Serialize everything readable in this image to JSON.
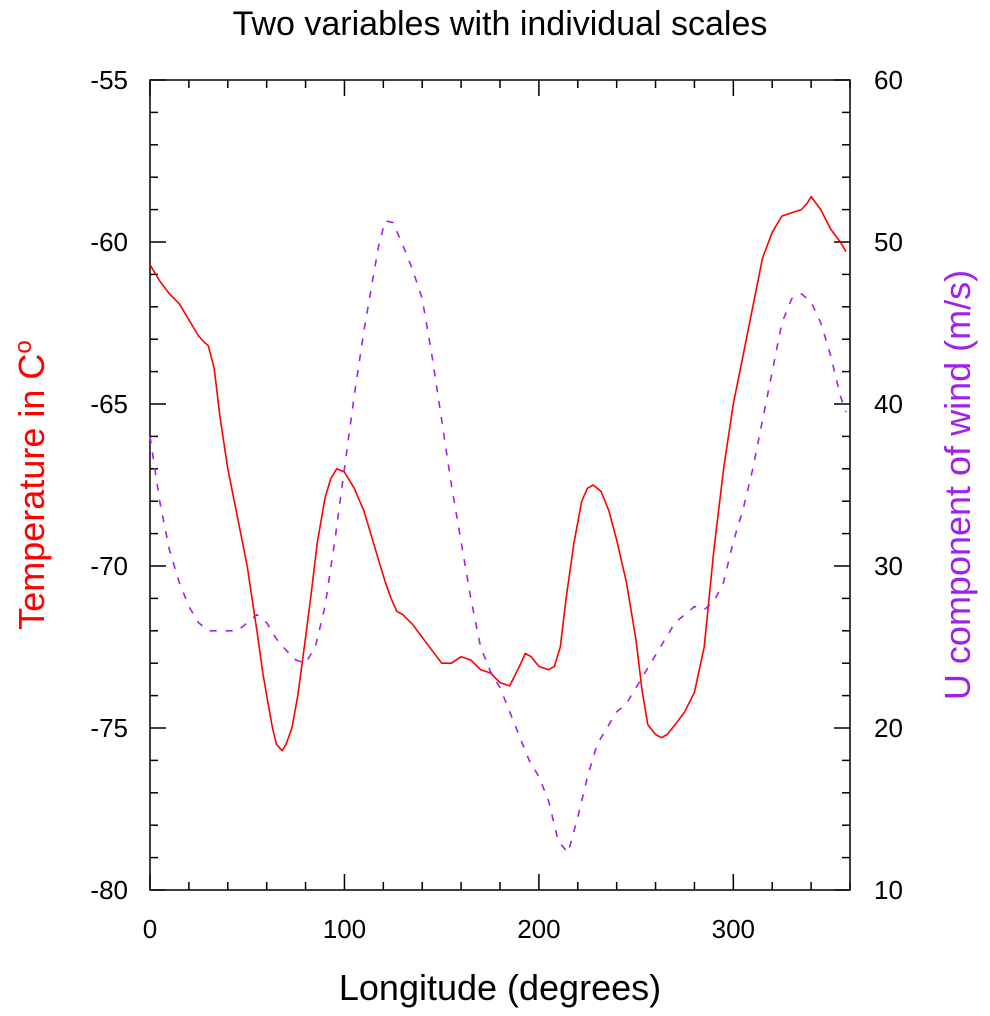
{
  "chart_data": {
    "type": "line",
    "title": "Two variables with individual scales",
    "xlabel": "Longitude (degrees)",
    "ylabel_left": "Temperature in C",
    "ylabel_left_superscript": "o",
    "ylabel_right": "U component of wind (m/s)",
    "xlim": [
      0,
      360
    ],
    "ylim_left": [
      -80,
      -55
    ],
    "ylim_right": [
      10,
      60
    ],
    "x_ticks": [
      0,
      100,
      200,
      300
    ],
    "x_tick_labels": [
      "0",
      "100",
      "200",
      "300"
    ],
    "y_left_ticks": [
      -80,
      -75,
      -70,
      -65,
      -60,
      -55
    ],
    "y_left_tick_labels": [
      "-80",
      "-75",
      "-70",
      "-65",
      "-60",
      "-55"
    ],
    "y_right_ticks": [
      10,
      20,
      30,
      40,
      50,
      60
    ],
    "y_right_tick_labels": [
      "10",
      "20",
      "30",
      "40",
      "50",
      "60"
    ],
    "grid": false,
    "colors": {
      "temperature": "#ff0000",
      "wind": "#a020f0",
      "axes": "#000000"
    },
    "series": [
      {
        "axis": "left",
        "style": "solid",
        "x": [
          0,
          5,
          10,
          15,
          20,
          25,
          28,
          30,
          33,
          36,
          40,
          45,
          50,
          55,
          58,
          60,
          63,
          65,
          68,
          70,
          73,
          76,
          80,
          83,
          86,
          90,
          93,
          96,
          100,
          105,
          110,
          115,
          118,
          121,
          124,
          127,
          130,
          135,
          140,
          145,
          150,
          155,
          160,
          165,
          170,
          175,
          180,
          185,
          190,
          193,
          196,
          200,
          205,
          208,
          211,
          214,
          218,
          222,
          225,
          228,
          232,
          236,
          240,
          245,
          250,
          253,
          256,
          260,
          263,
          266,
          270,
          275,
          280,
          285,
          290,
          295,
          300,
          305,
          310,
          315,
          320,
          325,
          330,
          335,
          338,
          340,
          345,
          350,
          355,
          358
        ],
        "y": [
          -60.7,
          -61.2,
          -61.6,
          -61.9,
          -62.4,
          -62.9,
          -63.1,
          -63.2,
          -63.9,
          -65.4,
          -67.0,
          -68.5,
          -70.0,
          -72.0,
          -73.3,
          -74.0,
          -75.0,
          -75.5,
          -75.7,
          -75.5,
          -75.0,
          -74.0,
          -72.2,
          -70.8,
          -69.3,
          -67.9,
          -67.3,
          -67.0,
          -67.1,
          -67.6,
          -68.3,
          -69.3,
          -69.9,
          -70.5,
          -71.0,
          -71.4,
          -71.5,
          -71.8,
          -72.2,
          -72.6,
          -73.0,
          -73.0,
          -72.8,
          -72.9,
          -73.2,
          -73.3,
          -73.6,
          -73.7,
          -73.1,
          -72.7,
          -72.8,
          -73.1,
          -73.2,
          -73.1,
          -72.5,
          -71.0,
          -69.3,
          -68.0,
          -67.6,
          -67.5,
          -67.7,
          -68.3,
          -69.2,
          -70.5,
          -72.3,
          -73.8,
          -74.9,
          -75.2,
          -75.3,
          -75.2,
          -74.9,
          -74.5,
          -73.9,
          -72.5,
          -69.5,
          -67.0,
          -65.0,
          -63.5,
          -62.0,
          -60.5,
          -59.7,
          -59.2,
          -59.1,
          -59.0,
          -58.8,
          -58.6,
          -59.0,
          -59.6,
          -60.0,
          -60.3
        ]
      },
      {
        "axis": "right",
        "style": "dashed",
        "x": [
          0,
          5,
          10,
          15,
          20,
          25,
          30,
          35,
          40,
          45,
          50,
          55,
          60,
          65,
          70,
          75,
          80,
          85,
          90,
          95,
          100,
          105,
          110,
          115,
          118,
          121,
          125,
          130,
          135,
          140,
          145,
          150,
          155,
          160,
          165,
          170,
          175,
          180,
          185,
          190,
          195,
          200,
          205,
          210,
          215,
          220,
          225,
          230,
          235,
          240,
          245,
          250,
          255,
          260,
          265,
          270,
          275,
          280,
          285,
          290,
          295,
          300,
          305,
          310,
          315,
          320,
          325,
          330,
          335,
          340,
          345,
          350,
          355,
          358
        ],
        "y": [
          38.0,
          34.0,
          31.0,
          29.0,
          27.5,
          26.5,
          26.0,
          26.0,
          26.0,
          26.0,
          26.5,
          27.0,
          26.5,
          25.5,
          24.8,
          24.2,
          24.0,
          25.0,
          27.5,
          31.5,
          36.0,
          40.5,
          44.5,
          48.0,
          50.0,
          51.3,
          51.2,
          49.8,
          48.3,
          46.5,
          43.0,
          39.0,
          35.0,
          31.5,
          28.0,
          25.0,
          23.5,
          22.5,
          21.0,
          19.5,
          18.0,
          17.0,
          15.5,
          13.0,
          12.3,
          14.5,
          17.0,
          19.0,
          20.0,
          21.0,
          21.5,
          22.5,
          23.5,
          24.5,
          25.5,
          26.5,
          27.0,
          27.5,
          27.3,
          27.8,
          29.0,
          31.5,
          33.5,
          36.0,
          39.0,
          42.0,
          45.0,
          46.5,
          46.8,
          46.3,
          45.0,
          43.0,
          40.5,
          39.5
        ]
      }
    ]
  }
}
